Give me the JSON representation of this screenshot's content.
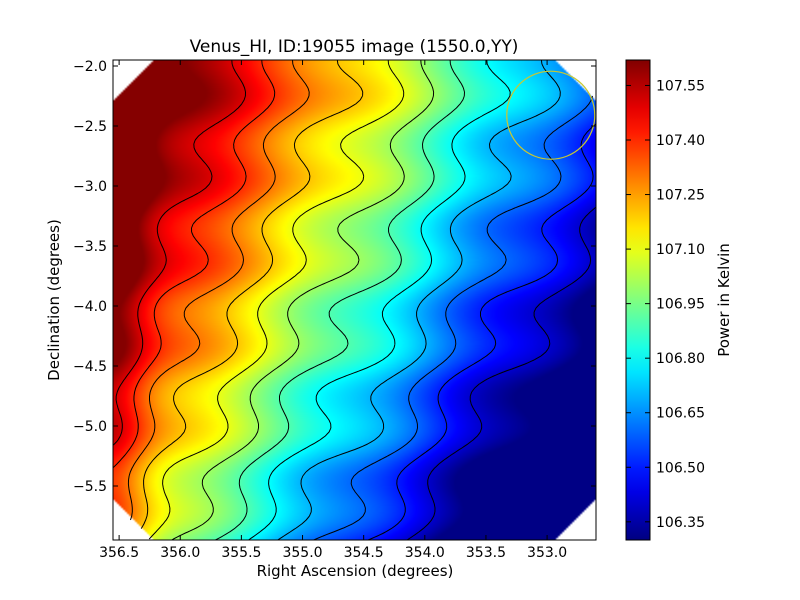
{
  "chart_data": {
    "type": "heatmap",
    "title": "Venus_HI, ID:19055 image (1550.0,YY)",
    "xlabel": "Right Ascension (degrees)",
    "ylabel": "Declination (degrees)",
    "xlim": [
      356.55,
      352.6
    ],
    "ylim": [
      -5.95,
      -1.95
    ],
    "xticks": [
      {
        "value": 356.5,
        "label": "356.5"
      },
      {
        "value": 356.0,
        "label": "356.0"
      },
      {
        "value": 355.5,
        "label": "355.5"
      },
      {
        "value": 355.0,
        "label": "355.0"
      },
      {
        "value": 354.5,
        "label": "354.5"
      },
      {
        "value": 354.0,
        "label": "354.0"
      },
      {
        "value": 353.5,
        "label": "353.5"
      },
      {
        "value": 353.0,
        "label": "353.0"
      }
    ],
    "yticks": [
      {
        "value": -2.0,
        "label": "−2.0"
      },
      {
        "value": -2.5,
        "label": "−2.5"
      },
      {
        "value": -3.0,
        "label": "−3.0"
      },
      {
        "value": -3.5,
        "label": "−3.5"
      },
      {
        "value": -4.0,
        "label": "−4.0"
      },
      {
        "value": -4.5,
        "label": "−4.5"
      },
      {
        "value": -5.0,
        "label": "−5.0"
      },
      {
        "value": -5.5,
        "label": "−5.5"
      }
    ],
    "colorbar": {
      "label": "Power in Kelvin",
      "colormap": "jet",
      "range": [
        106.3,
        107.62
      ],
      "ticks": [
        {
          "value": 107.55,
          "label": "107.55"
        },
        {
          "value": 107.4,
          "label": "107.40"
        },
        {
          "value": 107.25,
          "label": "107.25"
        },
        {
          "value": 107.1,
          "label": "107.10"
        },
        {
          "value": 106.95,
          "label": "106.95"
        },
        {
          "value": 106.8,
          "label": "106.80"
        },
        {
          "value": 106.65,
          "label": "106.65"
        },
        {
          "value": 106.5,
          "label": "106.50"
        },
        {
          "value": 106.35,
          "label": "106.35"
        }
      ]
    },
    "field": {
      "max": {
        "ra": 356.55,
        "dec": -3.8,
        "value": 107.62
      },
      "min": {
        "ra": 352.7,
        "dec": -3.8,
        "value": 106.3
      }
    },
    "contour_levels": [
      106.4,
      106.5,
      106.6,
      106.7,
      106.8,
      106.9,
      107.0,
      107.1,
      107.2,
      107.3,
      107.4,
      107.5
    ],
    "beam_circle": {
      "ra": 352.97,
      "dec": -2.41,
      "radius_deg": 0.36,
      "color": "#c8c832"
    },
    "colors": {
      "contour": "#000000",
      "frame": "#000000"
    }
  }
}
